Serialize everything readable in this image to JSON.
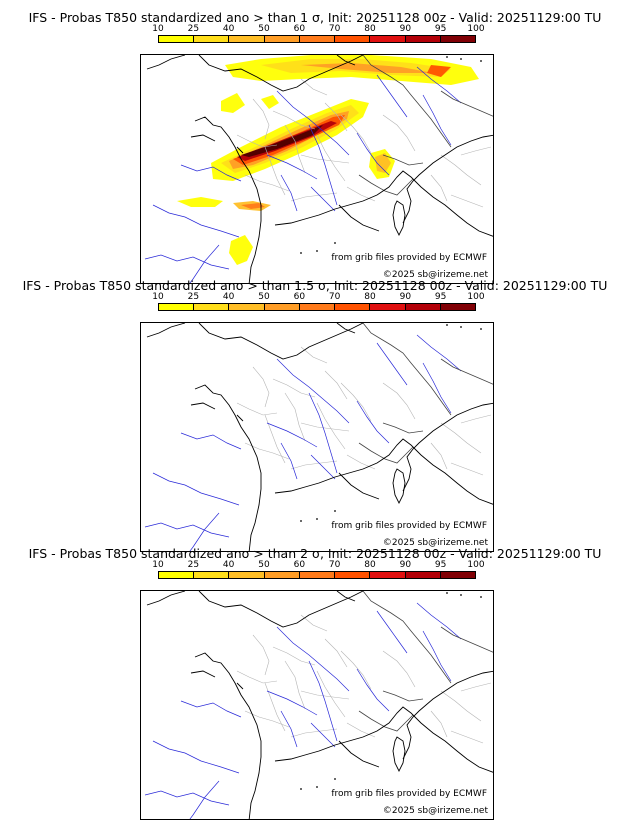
{
  "colorbar": {
    "ticks": [
      "10",
      "25",
      "40",
      "50",
      "60",
      "70",
      "80",
      "90",
      "95",
      "100"
    ],
    "colors": [
      "#ffff00",
      "#ffde1a",
      "#ffbe26",
      "#ff9d26",
      "#ff7a1a",
      "#ff5200",
      "#e01010",
      "#b30008",
      "#800005",
      "#4d0000"
    ]
  },
  "panels": [
    {
      "title": "IFS - Probas T850  standardized ano > than 1 σ, Init: 20251128 00z - Valid: 20251129:00 TU",
      "credit": "from grib files provided by ECMWF",
      "copyright": "©2025 sb@irizeme.net",
      "anomaly_visible": true
    },
    {
      "title": "IFS - Probas T850  standardized ano > than 1.5 σ, Init: 20251128 00z - Valid: 20251129:00 TU",
      "credit": "from grib files provided by ECMWF",
      "copyright": "©2025 sb@irizeme.net",
      "anomaly_visible": false
    },
    {
      "title": "IFS - Probas T850  standardized ano > than 2 σ, Init: 20251128 00z - Valid: 20251129:00 TU",
      "credit": "from grib files provided by ECMWF",
      "copyright": "©2025 sb@irizeme.net",
      "anomaly_visible": false
    }
  ]
}
